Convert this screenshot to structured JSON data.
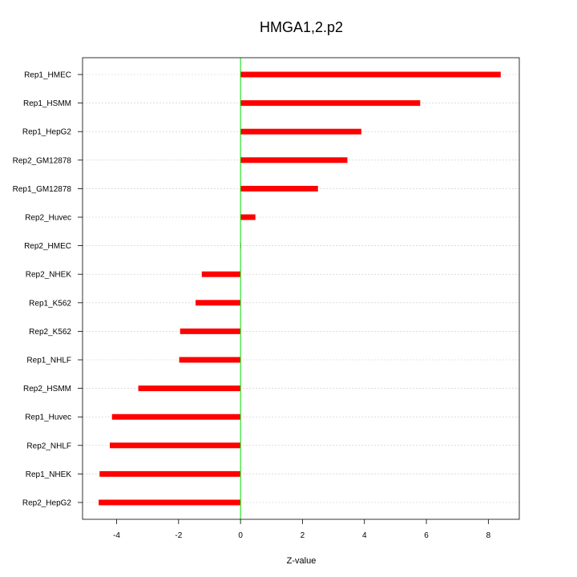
{
  "chart_data": {
    "type": "bar",
    "orientation": "horizontal",
    "title": "HMGA1,2.p2",
    "xlabel": "Z-value",
    "ylabel": "",
    "xlim": [
      -5.1,
      9.0
    ],
    "xticks": [
      -4,
      -2,
      0,
      2,
      4,
      6,
      8
    ],
    "grid": true,
    "bar_color": "#ff0000",
    "zero_line_color": "#00dd00",
    "categories": [
      "Rep1_HMEC",
      "Rep1_HSMM",
      "Rep1_HepG2",
      "Rep2_GM12878",
      "Rep1_GM12878",
      "Rep2_Huvec",
      "Rep2_HMEC",
      "Rep2_NHEK",
      "Rep1_K562",
      "Rep2_K562",
      "Rep1_NHLF",
      "Rep2_HSMM",
      "Rep1_Huvec",
      "Rep2_NHLF",
      "Rep1_NHEK",
      "Rep2_HepG2"
    ],
    "values": [
      8.4,
      5.8,
      3.9,
      3.45,
      2.5,
      0.48,
      0.0,
      -1.25,
      -1.45,
      -1.95,
      -1.98,
      -3.3,
      -4.15,
      -4.22,
      -4.55,
      -4.58
    ]
  }
}
